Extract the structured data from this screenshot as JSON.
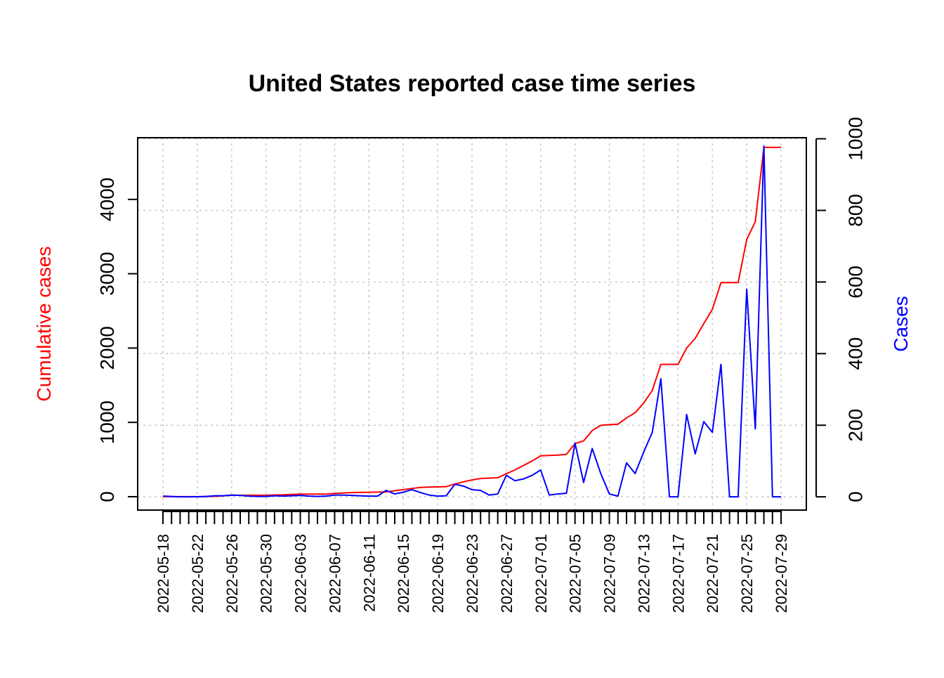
{
  "colors": {
    "cumulative": "#ff0000",
    "cases": "#0000ff",
    "axis": "#000000",
    "grid": "#c8c8c8"
  },
  "chart_data": {
    "type": "line",
    "title": "United States reported case time series",
    "xlabel": "",
    "ylabel_left": "Cumulative cases",
    "ylabel_right": "Cases",
    "grid": true,
    "x": [
      "2022-05-18",
      "2022-05-19",
      "2022-05-20",
      "2022-05-21",
      "2022-05-22",
      "2022-05-23",
      "2022-05-24",
      "2022-05-25",
      "2022-05-26",
      "2022-05-27",
      "2022-05-28",
      "2022-05-29",
      "2022-05-30",
      "2022-05-31",
      "2022-06-01",
      "2022-06-02",
      "2022-06-03",
      "2022-06-04",
      "2022-06-05",
      "2022-06-06",
      "2022-06-07",
      "2022-06-08",
      "2022-06-09",
      "2022-06-10",
      "2022-06-11",
      "2022-06-12",
      "2022-06-13",
      "2022-06-14",
      "2022-06-15",
      "2022-06-16",
      "2022-06-17",
      "2022-06-18",
      "2022-06-19",
      "2022-06-20",
      "2022-06-21",
      "2022-06-22",
      "2022-06-23",
      "2022-06-24",
      "2022-06-25",
      "2022-06-26",
      "2022-06-27",
      "2022-06-28",
      "2022-06-29",
      "2022-06-30",
      "2022-07-01",
      "2022-07-02",
      "2022-07-03",
      "2022-07-04",
      "2022-07-05",
      "2022-07-06",
      "2022-07-07",
      "2022-07-08",
      "2022-07-09",
      "2022-07-10",
      "2022-07-11",
      "2022-07-12",
      "2022-07-13",
      "2022-07-14",
      "2022-07-15",
      "2022-07-16",
      "2022-07-17",
      "2022-07-18",
      "2022-07-19",
      "2022-07-20",
      "2022-07-21",
      "2022-07-22",
      "2022-07-23",
      "2022-07-24",
      "2022-07-25",
      "2022-07-26",
      "2022-07-27",
      "2022-07-28",
      "2022-07-29"
    ],
    "x_tick_labels": [
      "2022-05-18",
      "2022-05-22",
      "2022-05-26",
      "2022-05-30",
      "2022-06-03",
      "2022-06-07",
      "2022-06-11",
      "2022-06-15",
      "2022-06-19",
      "2022-06-23",
      "2022-06-27",
      "2022-07-01",
      "2022-07-05",
      "2022-07-09",
      "2022-07-13",
      "2022-07-17",
      "2022-07-21",
      "2022-07-25",
      "2022-07-29"
    ],
    "y_left_ticks": [
      0,
      1000,
      2000,
      3000,
      4000
    ],
    "y_right_ticks": [
      0,
      200,
      400,
      600,
      800,
      1000
    ],
    "ylim_left": [
      -180,
      4830
    ],
    "ylim_right": [
      -37,
      1003
    ],
    "series": [
      {
        "name": "Cumulative cases",
        "axis": "left",
        "values": [
          1,
          1,
          1,
          1,
          1,
          2,
          5,
          12,
          20,
          20,
          20,
          20,
          20,
          23,
          25,
          30,
          35,
          35,
          35,
          35,
          45,
          50,
          55,
          58,
          60,
          62,
          65,
          80,
          95,
          110,
          125,
          130,
          132,
          135,
          170,
          200,
          225,
          245,
          250,
          255,
          310,
          360,
          420,
          480,
          550,
          555,
          560,
          570,
          715,
          750,
          890,
          960,
          970,
          975,
          1060,
          1130,
          1260,
          1430,
          1780,
          1780,
          1780,
          2000,
          2130,
          2330,
          2520,
          2880,
          2880,
          2880,
          3460,
          3700,
          4700,
          4700,
          4700
        ]
      },
      {
        "name": "Cases",
        "axis": "right",
        "values": [
          2,
          1,
          0,
          0,
          0,
          1,
          3,
          3,
          5,
          4,
          2,
          1,
          1,
          3,
          2,
          3,
          4,
          2,
          1,
          2,
          5,
          5,
          4,
          3,
          2,
          2,
          18,
          8,
          13,
          20,
          12,
          5,
          2,
          3,
          35,
          30,
          20,
          18,
          5,
          8,
          60,
          45,
          50,
          60,
          75,
          5,
          8,
          10,
          150,
          40,
          135,
          65,
          8,
          2,
          95,
          65,
          125,
          180,
          330,
          0,
          0,
          230,
          120,
          210,
          180,
          370,
          0,
          0,
          580,
          190,
          980,
          0,
          0
        ]
      }
    ]
  }
}
